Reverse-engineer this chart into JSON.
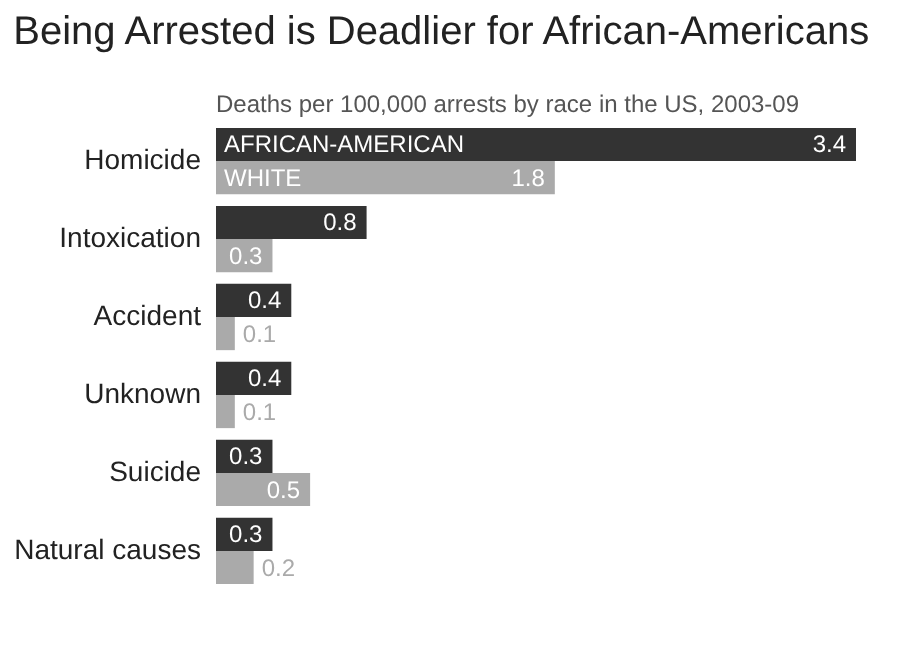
{
  "chart_data": {
    "type": "bar",
    "orientation": "horizontal",
    "title": "Being Arrested is Deadlier for African-Americans",
    "subtitle": "Deaths per 100,000 arrests by race in the US, 2003-09",
    "categories": [
      "Homicide",
      "Intoxication",
      "Accident",
      "Unknown",
      "Suicide",
      "Natural causes"
    ],
    "series": [
      {
        "name": "AFRICAN-AMERICAN",
        "color": "#333333",
        "values": [
          3.4,
          0.8,
          0.4,
          0.4,
          0.3,
          0.3
        ]
      },
      {
        "name": "WHITE",
        "color": "#aaaaaa",
        "values": [
          1.8,
          0.3,
          0.1,
          0.1,
          0.5,
          0.2
        ]
      }
    ],
    "data_labels": true
  }
}
